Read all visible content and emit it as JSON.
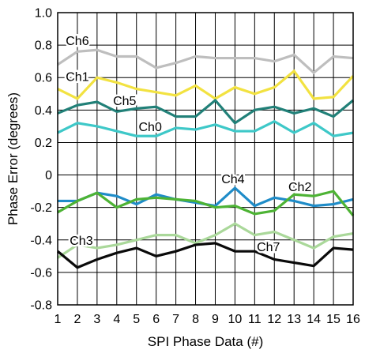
{
  "chart_data": {
    "type": "line",
    "xlabel": "SPI Phase Data (#)",
    "ylabel": "Phase Error (degrees)",
    "x": [
      1,
      2,
      3,
      4,
      5,
      6,
      7,
      8,
      9,
      10,
      11,
      12,
      13,
      14,
      15,
      16
    ],
    "xlim": [
      1,
      16
    ],
    "ylim": [
      -0.8,
      1.0
    ],
    "yticks": [
      "-0.8",
      "-0.6",
      "-0.4",
      "-0.2",
      "0",
      "0.2",
      "0.4",
      "0.6",
      "0.8",
      "1.0"
    ],
    "grid": true,
    "legend": "none",
    "series": [
      {
        "name": "Ch6",
        "color": "#bebebe",
        "label_x": 2,
        "label_y": 0.8,
        "values": [
          0.68,
          0.76,
          0.77,
          0.73,
          0.73,
          0.66,
          0.69,
          0.73,
          0.72,
          0.72,
          0.72,
          0.7,
          0.74,
          0.63,
          0.73,
          0.72
        ]
      },
      {
        "name": "Ch1",
        "color": "#f2e241",
        "label_x": 2,
        "label_y": 0.58,
        "values": [
          0.53,
          0.47,
          0.6,
          0.57,
          0.53,
          0.51,
          0.49,
          0.55,
          0.47,
          0.54,
          0.5,
          0.54,
          0.64,
          0.47,
          0.48,
          0.61
        ]
      },
      {
        "name": "Ch5",
        "color": "#218078",
        "label_x": 4.4,
        "label_y": 0.43,
        "values": [
          0.38,
          0.43,
          0.45,
          0.39,
          0.41,
          0.42,
          0.36,
          0.36,
          0.46,
          0.32,
          0.4,
          0.42,
          0.38,
          0.41,
          0.36,
          0.46
        ]
      },
      {
        "name": "Ch0",
        "color": "#3ec8c8",
        "label_x": 5.7,
        "label_y": 0.27,
        "values": [
          0.26,
          0.32,
          0.3,
          0.27,
          0.24,
          0.24,
          0.29,
          0.28,
          0.31,
          0.27,
          0.27,
          0.33,
          0.26,
          0.32,
          0.24,
          0.26
        ]
      },
      {
        "name": "Ch4",
        "color": "#1f8cc8",
        "label_x": 9.9,
        "label_y": -0.05,
        "values": [
          -0.16,
          -0.16,
          -0.11,
          -0.13,
          -0.18,
          -0.12,
          -0.15,
          -0.17,
          -0.19,
          -0.08,
          -0.19,
          -0.14,
          -0.16,
          -0.19,
          -0.18,
          -0.15
        ]
      },
      {
        "name": "Ch2",
        "color": "#4db334",
        "label_x": 13.3,
        "label_y": -0.1,
        "values": [
          -0.23,
          -0.16,
          -0.11,
          -0.2,
          -0.15,
          -0.14,
          -0.15,
          -0.16,
          -0.2,
          -0.19,
          -0.24,
          -0.22,
          -0.12,
          -0.13,
          -0.1,
          -0.25
        ]
      },
      {
        "name": "Ch3",
        "color": "#aad89a",
        "label_x": 2.2,
        "label_y": -0.43,
        "values": [
          -0.51,
          -0.43,
          -0.45,
          -0.43,
          -0.4,
          -0.37,
          -0.37,
          -0.42,
          -0.37,
          -0.3,
          -0.37,
          -0.35,
          -0.4,
          -0.45,
          -0.38,
          -0.36
        ]
      },
      {
        "name": "Ch7",
        "color": "#0a0a0a",
        "label_x": 11.7,
        "label_y": -0.47,
        "values": [
          -0.47,
          -0.57,
          -0.52,
          -0.48,
          -0.45,
          -0.5,
          -0.47,
          -0.43,
          -0.42,
          -0.47,
          -0.47,
          -0.52,
          -0.54,
          -0.56,
          -0.45,
          -0.46
        ]
      }
    ]
  }
}
